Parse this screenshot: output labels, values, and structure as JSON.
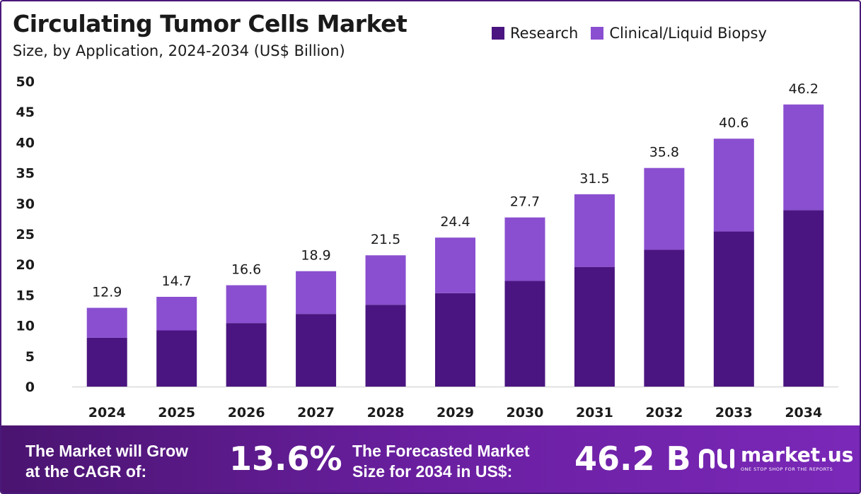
{
  "chart_data": {
    "type": "bar",
    "stacked": true,
    "title": "Circulating Tumor Cells Market",
    "subtitle": "Size, by Application, 2024-2034 (US$ Billion)",
    "categories": [
      "2024",
      "2025",
      "2026",
      "2027",
      "2028",
      "2029",
      "2030",
      "2031",
      "2032",
      "2033",
      "2034"
    ],
    "series": [
      {
        "name": "Research",
        "color": "#4a1580",
        "values": [
          8.0,
          9.2,
          10.4,
          11.9,
          13.4,
          15.3,
          17.3,
          19.6,
          22.4,
          25.4,
          28.9
        ]
      },
      {
        "name": "Clinical/Liquid Biopsy",
        "color": "#8a4fd0",
        "values": [
          4.9,
          5.5,
          6.2,
          7.0,
          8.1,
          9.1,
          10.4,
          11.9,
          13.4,
          15.2,
          17.3
        ]
      }
    ],
    "totals": [
      "12.9",
      "14.7",
      "16.6",
      "18.9",
      "21.5",
      "24.4",
      "27.7",
      "31.5",
      "35.8",
      "40.6",
      "46.2"
    ],
    "y_ticks": [
      "0",
      "5",
      "10",
      "15",
      "20",
      "25",
      "30",
      "35",
      "40",
      "45",
      "50"
    ],
    "ylim": [
      0,
      50
    ],
    "grid": false,
    "legend_position": "top-right"
  },
  "footer": {
    "cagr_label_line1": "The Market will Grow",
    "cagr_label_line2": "at the CAGR of:",
    "cagr_value": "13.6%",
    "forecast_label_line1": "The Forecasted Market",
    "forecast_label_line2": "Size for 2034 in US$:",
    "forecast_value": "46.2 B"
  },
  "logo": {
    "name": "market.us",
    "tagline": "ONE STOP SHOP FOR THE REPORTS"
  }
}
